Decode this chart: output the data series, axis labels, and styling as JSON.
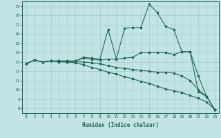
{
  "xlabel": "Humidex (Indice chaleur)",
  "xlim": [
    -0.5,
    23.5
  ],
  "ylim": [
    7.5,
    19.5
  ],
  "xticks": [
    0,
    1,
    2,
    3,
    4,
    5,
    6,
    7,
    8,
    9,
    10,
    11,
    12,
    13,
    14,
    15,
    16,
    17,
    18,
    19,
    20,
    21,
    22,
    23
  ],
  "yticks": [
    8,
    9,
    10,
    11,
    12,
    13,
    14,
    15,
    16,
    17,
    18,
    19
  ],
  "bg_color": "#c2e4e4",
  "grid_color": "#a8d0d0",
  "line_color": "#206858",
  "lines": [
    {
      "x": [
        0,
        1,
        2,
        3,
        4,
        5,
        6,
        7,
        8,
        9,
        10,
        11,
        12,
        13,
        14,
        15,
        16,
        17,
        18,
        19,
        20,
        21,
        22,
        23
      ],
      "y": [
        12.8,
        13.2,
        13.0,
        13.1,
        13.1,
        13.1,
        13.1,
        13.5,
        13.4,
        13.3,
        16.5,
        13.3,
        16.6,
        16.7,
        16.7,
        19.2,
        18.3,
        16.8,
        16.5,
        14.1,
        14.1,
        9.8,
        9.3,
        7.9
      ]
    },
    {
      "x": [
        0,
        1,
        2,
        3,
        4,
        5,
        6,
        7,
        8,
        9,
        10,
        11,
        12,
        13,
        14,
        15,
        16,
        17,
        18,
        19,
        20,
        21,
        22,
        23
      ],
      "y": [
        12.8,
        13.2,
        13.0,
        13.1,
        13.1,
        13.1,
        13.1,
        13.4,
        13.3,
        13.2,
        13.3,
        13.3,
        13.4,
        13.5,
        14.0,
        14.0,
        14.0,
        14.0,
        13.8,
        14.1,
        14.1,
        11.5,
        9.3,
        7.9
      ]
    },
    {
      "x": [
        0,
        1,
        2,
        3,
        4,
        5,
        6,
        7,
        8,
        9,
        10,
        11,
        12,
        13,
        14,
        15,
        16,
        17,
        18,
        19,
        20,
        21,
        22,
        23
      ],
      "y": [
        12.8,
        13.2,
        13.0,
        13.1,
        13.1,
        13.0,
        13.0,
        13.0,
        12.9,
        12.8,
        12.6,
        12.4,
        12.3,
        12.2,
        12.1,
        12.0,
        11.9,
        11.9,
        11.8,
        11.5,
        11.0,
        10.0,
        9.3,
        7.9
      ]
    },
    {
      "x": [
        0,
        1,
        2,
        3,
        4,
        5,
        6,
        7,
        8,
        9,
        10,
        11,
        12,
        13,
        14,
        15,
        16,
        17,
        18,
        19,
        20,
        21,
        22,
        23
      ],
      "y": [
        12.8,
        13.2,
        13.0,
        13.1,
        13.0,
        13.0,
        12.9,
        12.7,
        12.4,
        12.2,
        11.9,
        11.7,
        11.4,
        11.2,
        10.9,
        10.7,
        10.4,
        10.1,
        9.9,
        9.7,
        9.4,
        9.1,
        8.7,
        7.9
      ]
    }
  ]
}
